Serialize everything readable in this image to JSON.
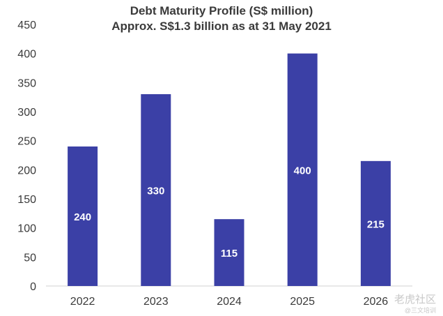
{
  "chart_data": {
    "type": "bar",
    "title": "Debt Maturity Profile (S$ million)",
    "subtitle": "Approx. S$1.3 billion as at 31 May 2021",
    "categories": [
      "2022",
      "2023",
      "2024",
      "2025",
      "2026"
    ],
    "values": [
      240,
      330,
      115,
      400,
      215
    ],
    "data_labels": [
      "240",
      "330",
      "115",
      "400",
      "215"
    ],
    "ylim": [
      0,
      450
    ],
    "yticks": [
      "0",
      "50",
      "100",
      "150",
      "200",
      "250",
      "300",
      "350",
      "400",
      "450"
    ],
    "xlabel": "",
    "ylabel": "",
    "grid": false,
    "legend": "none",
    "bar_color": "#3b40a6",
    "label_color": "#ffffff"
  },
  "watermark": {
    "main": "老虎社区",
    "sub": "@三文培训"
  }
}
